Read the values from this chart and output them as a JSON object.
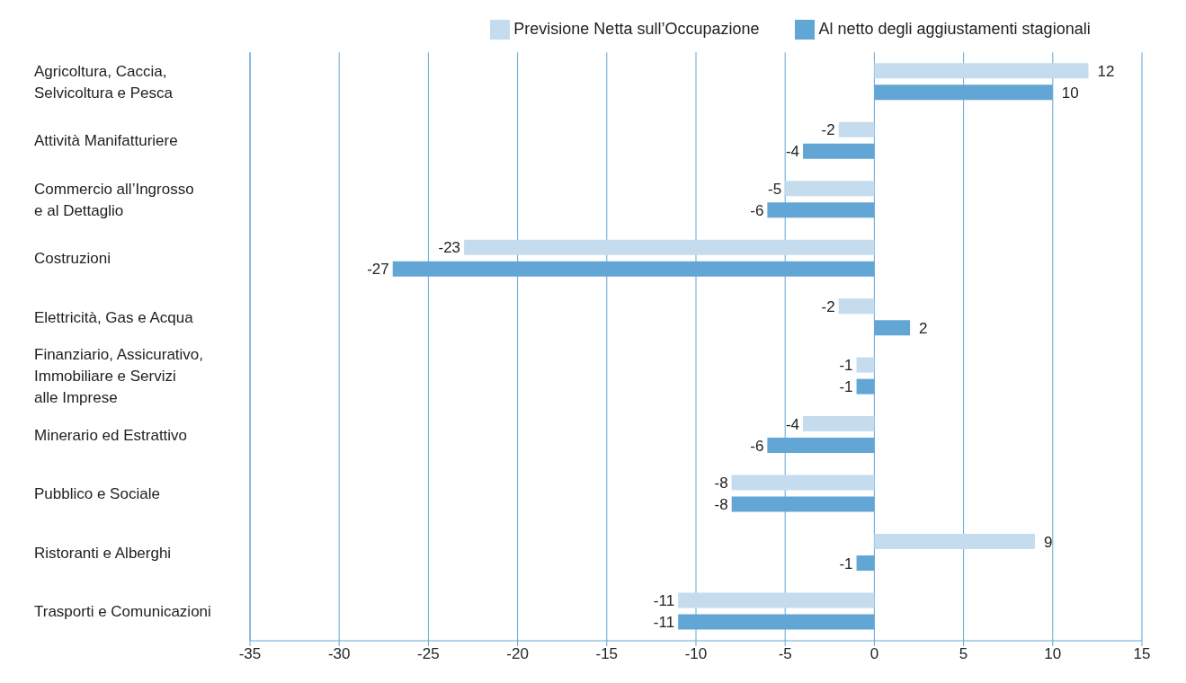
{
  "chart_data": {
    "type": "bar",
    "orientation": "horizontal",
    "categories": [
      "Agricoltura, Caccia,\nSelvicoltura e Pesca",
      "Attività Manifatturiere",
      "Commercio all’Ingrosso\ne al Dettaglio",
      "Costruzioni",
      "Elettricità, Gas e Acqua",
      "Finanziario, Assicurativo,\nImmobiliare e Servizi\nalle Imprese",
      "Minerario ed Estrattivo",
      "Pubblico e Sociale",
      "Ristoranti e Alberghi",
      "Trasporti e Comunicazioni"
    ],
    "series": [
      {
        "name": "Previsione Netta sull’Occupazione",
        "color": "#c5dcef",
        "values": [
          12,
          -2,
          -5,
          -23,
          -2,
          -1,
          -4,
          -8,
          9,
          -11
        ]
      },
      {
        "name": "Al netto degli aggiustamenti stagionali",
        "color": "#62a6d6",
        "values": [
          10,
          -4,
          -6,
          -27,
          2,
          -1,
          -6,
          -8,
          -1,
          -11
        ]
      }
    ],
    "xlim": [
      -35,
      15
    ],
    "xticks": [
      -35,
      -30,
      -25,
      -20,
      -15,
      -10,
      -5,
      0,
      5,
      10,
      15
    ],
    "grid": "x",
    "legend": "top",
    "data_labels": true
  }
}
